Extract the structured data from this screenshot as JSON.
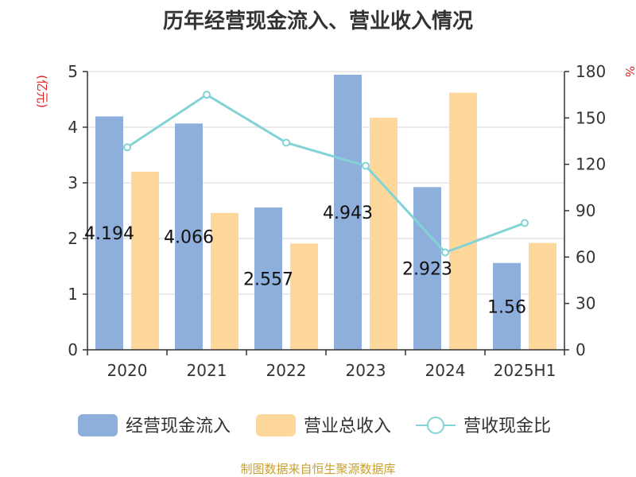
{
  "chart_data": {
    "type": "bar",
    "title": "历年经营现金流入、营业收入情况",
    "categories": [
      "2020",
      "2021",
      "2022",
      "2023",
      "2024",
      "2025H1"
    ],
    "series": [
      {
        "name": "经营现金流入",
        "type": "bar",
        "axis": "left",
        "color": "#8eaedb",
        "values": [
          4.194,
          4.066,
          2.557,
          4.943,
          2.923,
          1.56
        ],
        "labels": [
          "4.194",
          "4.066",
          "2.557",
          "4.943",
          "2.923",
          "1.56"
        ]
      },
      {
        "name": "营业总收入",
        "type": "bar",
        "axis": "left",
        "color": "#fdd89a",
        "values": [
          3.2,
          2.46,
          1.91,
          4.17,
          4.62,
          1.92
        ]
      },
      {
        "name": "营收现金比",
        "type": "line",
        "axis": "right",
        "color": "#83d3d6",
        "values": [
          131,
          165,
          134,
          119,
          63,
          82
        ]
      }
    ],
    "ylabel_left": "(亿元)",
    "ylabel_right": "%",
    "ylim_left": [
      0,
      5
    ],
    "ylim_right": [
      0,
      180
    ],
    "yticks_left": [
      "0",
      "1",
      "2",
      "3",
      "4",
      "5"
    ],
    "yticks_right": [
      "0",
      "30",
      "60",
      "90",
      "120",
      "150",
      "180"
    ],
    "grid": true,
    "legend_position": "bottom"
  },
  "source_note": "制图数据来自恒生聚源数据库"
}
